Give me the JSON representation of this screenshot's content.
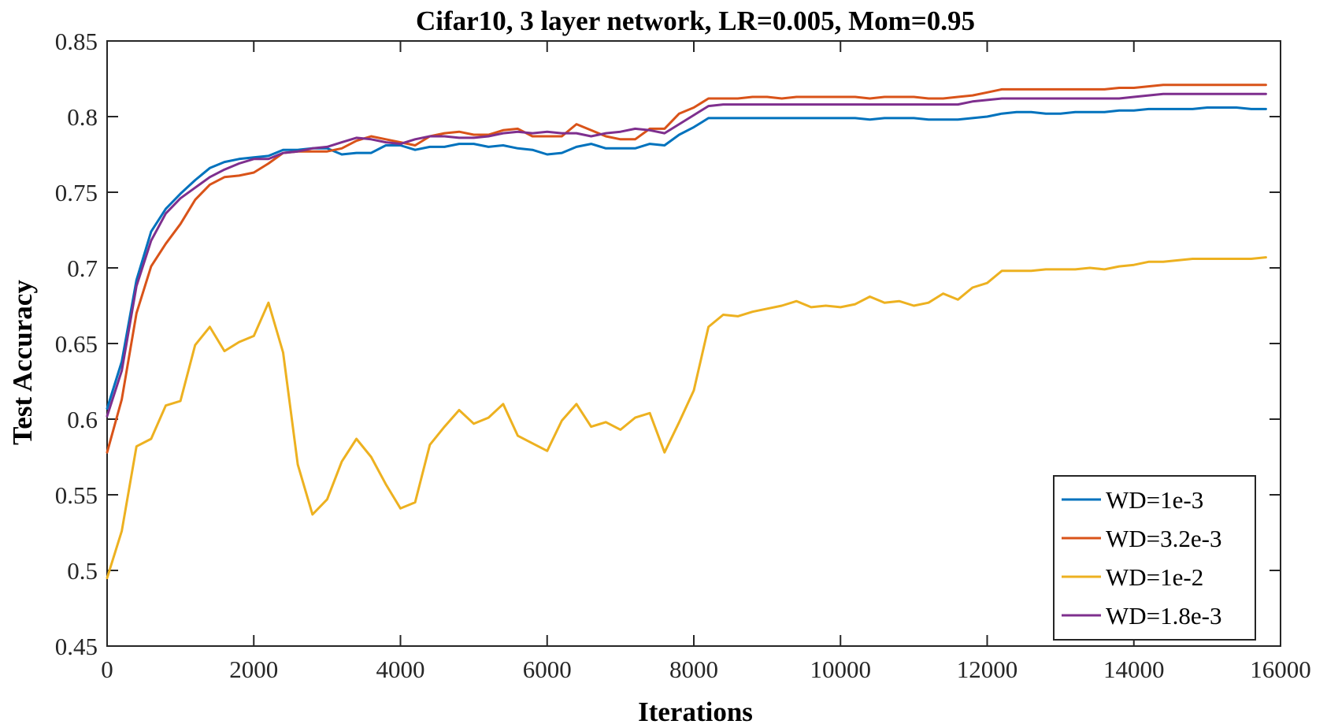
{
  "chart_data": {
    "type": "line",
    "title": "Cifar10, 3 layer network, LR=0.005, Mom=0.95",
    "xlabel": "Iterations",
    "ylabel": "Test Accuracy",
    "xlim": [
      0,
      16000
    ],
    "ylim": [
      0.45,
      0.85
    ],
    "xticks": [
      0,
      2000,
      4000,
      6000,
      8000,
      10000,
      12000,
      14000,
      16000
    ],
    "xtick_labels": [
      "0",
      "2000",
      "4000",
      "6000",
      "8000",
      "10000",
      "12000",
      "14000",
      "16000"
    ],
    "yticks": [
      0.45,
      0.5,
      0.55,
      0.6,
      0.65,
      0.7,
      0.75,
      0.8,
      0.85
    ],
    "ytick_labels": [
      "0.45",
      "0.5",
      "0.55",
      "0.6",
      "0.65",
      "0.7",
      "0.75",
      "0.8",
      "0.85"
    ],
    "grid": false,
    "legend_position": "bottom-right",
    "x": [
      0,
      200,
      400,
      600,
      800,
      1000,
      1200,
      1400,
      1600,
      1800,
      2000,
      2200,
      2400,
      2600,
      2800,
      3000,
      3200,
      3400,
      3600,
      3800,
      4000,
      4200,
      4400,
      4600,
      4800,
      5000,
      5200,
      5400,
      5600,
      5800,
      6000,
      6200,
      6400,
      6600,
      6800,
      7000,
      7200,
      7400,
      7600,
      7800,
      8000,
      8200,
      8400,
      8600,
      8800,
      9000,
      9200,
      9400,
      9600,
      9800,
      10000,
      10200,
      10400,
      10600,
      10800,
      11000,
      11200,
      11400,
      11600,
      11800,
      12000,
      12200,
      12400,
      12600,
      12800,
      13000,
      13200,
      13400,
      13600,
      13800,
      14000,
      14200,
      14400,
      14600,
      14800,
      15000,
      15200,
      15400,
      15600,
      15800
    ],
    "series": [
      {
        "name": "WD=1e-3",
        "color": "#0072BD",
        "values": [
          0.607,
          0.638,
          0.692,
          0.724,
          0.739,
          0.749,
          0.758,
          0.766,
          0.77,
          0.772,
          0.773,
          0.774,
          0.778,
          0.778,
          0.779,
          0.779,
          0.775,
          0.776,
          0.776,
          0.781,
          0.781,
          0.778,
          0.78,
          0.78,
          0.782,
          0.782,
          0.78,
          0.781,
          0.779,
          0.778,
          0.775,
          0.776,
          0.78,
          0.782,
          0.779,
          0.779,
          0.779,
          0.782,
          0.781,
          0.788,
          0.793,
          0.799,
          0.799,
          0.799,
          0.799,
          0.799,
          0.799,
          0.799,
          0.799,
          0.799,
          0.799,
          0.799,
          0.798,
          0.799,
          0.799,
          0.799,
          0.798,
          0.798,
          0.798,
          0.799,
          0.8,
          0.802,
          0.803,
          0.803,
          0.802,
          0.802,
          0.803,
          0.803,
          0.803,
          0.804,
          0.804,
          0.805,
          0.805,
          0.805,
          0.805,
          0.806,
          0.806,
          0.806,
          0.805,
          0.805
        ]
      },
      {
        "name": "WD=3.2e-3",
        "color": "#D95319",
        "values": [
          0.578,
          0.613,
          0.67,
          0.701,
          0.716,
          0.729,
          0.745,
          0.755,
          0.76,
          0.761,
          0.763,
          0.769,
          0.776,
          0.777,
          0.777,
          0.777,
          0.779,
          0.784,
          0.787,
          0.785,
          0.783,
          0.781,
          0.787,
          0.789,
          0.79,
          0.788,
          0.788,
          0.791,
          0.792,
          0.787,
          0.787,
          0.787,
          0.795,
          0.791,
          0.787,
          0.785,
          0.785,
          0.792,
          0.792,
          0.802,
          0.806,
          0.812,
          0.812,
          0.812,
          0.813,
          0.813,
          0.812,
          0.813,
          0.813,
          0.813,
          0.813,
          0.813,
          0.812,
          0.813,
          0.813,
          0.813,
          0.812,
          0.812,
          0.813,
          0.814,
          0.816,
          0.818,
          0.818,
          0.818,
          0.818,
          0.818,
          0.818,
          0.818,
          0.818,
          0.819,
          0.819,
          0.82,
          0.821,
          0.821,
          0.821,
          0.821,
          0.821,
          0.821,
          0.821,
          0.821
        ]
      },
      {
        "name": "WD=1e-2",
        "color": "#EDB120",
        "values": [
          0.495,
          0.526,
          0.582,
          0.587,
          0.609,
          0.612,
          0.649,
          0.661,
          0.645,
          0.651,
          0.655,
          0.677,
          0.644,
          0.57,
          0.537,
          0.547,
          0.572,
          0.587,
          0.575,
          0.557,
          0.541,
          0.545,
          0.583,
          0.595,
          0.606,
          0.597,
          0.601,
          0.61,
          0.589,
          0.584,
          0.579,
          0.599,
          0.61,
          0.595,
          0.598,
          0.593,
          0.601,
          0.604,
          0.578,
          0.598,
          0.619,
          0.661,
          0.669,
          0.668,
          0.671,
          0.673,
          0.675,
          0.678,
          0.674,
          0.675,
          0.674,
          0.676,
          0.681,
          0.677,
          0.678,
          0.675,
          0.677,
          0.683,
          0.679,
          0.687,
          0.69,
          0.698,
          0.698,
          0.698,
          0.699,
          0.699,
          0.699,
          0.7,
          0.699,
          0.701,
          0.702,
          0.704,
          0.704,
          0.705,
          0.706,
          0.706,
          0.706,
          0.706,
          0.706,
          0.707
        ]
      },
      {
        "name": "WD=1.8e-3",
        "color": "#7E2F8E",
        "values": [
          0.602,
          0.632,
          0.688,
          0.718,
          0.736,
          0.746,
          0.753,
          0.76,
          0.765,
          0.769,
          0.772,
          0.772,
          0.776,
          0.777,
          0.779,
          0.78,
          0.783,
          0.786,
          0.785,
          0.783,
          0.782,
          0.785,
          0.787,
          0.787,
          0.786,
          0.786,
          0.787,
          0.789,
          0.79,
          0.789,
          0.79,
          0.789,
          0.789,
          0.787,
          0.789,
          0.79,
          0.792,
          0.791,
          0.789,
          0.795,
          0.801,
          0.807,
          0.808,
          0.808,
          0.808,
          0.808,
          0.808,
          0.808,
          0.808,
          0.808,
          0.808,
          0.808,
          0.808,
          0.808,
          0.808,
          0.808,
          0.808,
          0.808,
          0.808,
          0.81,
          0.811,
          0.812,
          0.812,
          0.812,
          0.812,
          0.812,
          0.812,
          0.812,
          0.812,
          0.812,
          0.813,
          0.814,
          0.815,
          0.815,
          0.815,
          0.815,
          0.815,
          0.815,
          0.815,
          0.815
        ]
      }
    ]
  }
}
